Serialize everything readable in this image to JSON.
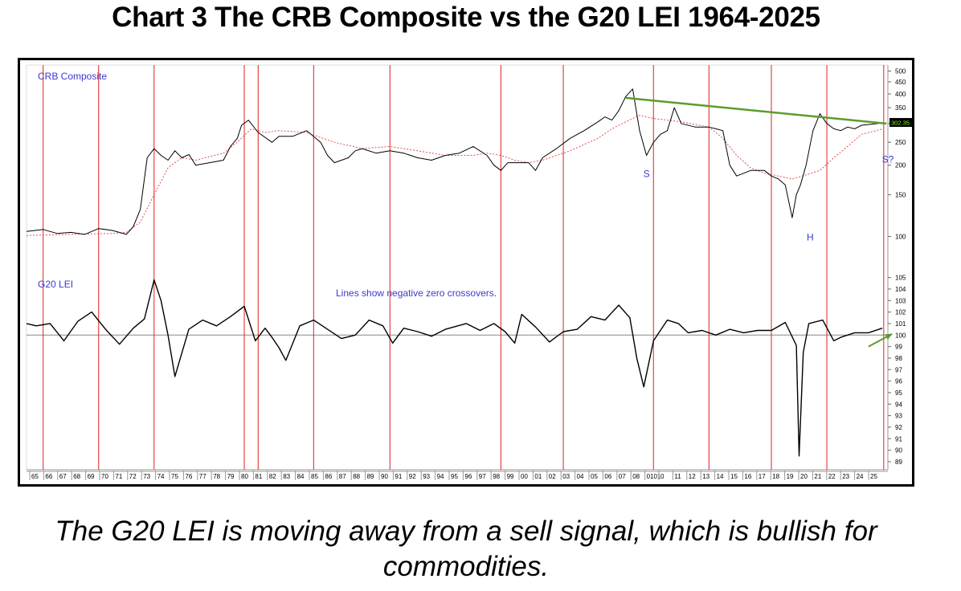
{
  "title": "Chart 3 The CRB Composite vs the G20 LEI 1964-2025",
  "caption_line1": "The G20 LEI is moving away from a sell signal, which is bullish for",
  "caption_line2": "commodities.",
  "chart_data": {
    "type": "line",
    "colors": {
      "price": "#000000",
      "moving_average": "#e05050",
      "signal_lines": "#e02020",
      "trendline": "#5a9e2a",
      "annotation": "#3a3ad0",
      "zero_line": "#888888"
    },
    "x_tick_labels": [
      "65",
      "66",
      "67",
      "68",
      "69",
      "70",
      "71",
      "72",
      "73",
      "74",
      "75",
      "76",
      "77",
      "78",
      "79",
      "80",
      "81",
      "82",
      "83",
      "84",
      "85",
      "86",
      "87",
      "88",
      "89",
      "90",
      "91",
      "92",
      "93",
      "94",
      "95",
      "96",
      "97",
      "98",
      "99",
      "00",
      "01",
      "02",
      "03",
      "04",
      "05",
      "06",
      "07",
      "08",
      "0101",
      "0",
      "11",
      "12",
      "13",
      "14",
      "15",
      "16",
      "17",
      "18",
      "19",
      "20",
      "21",
      "22",
      "23",
      "24",
      "25"
    ],
    "signal_years": [
      1966.0,
      1970.0,
      1974.0,
      1980.5,
      1981.5,
      1985.5,
      1991.0,
      1999.0,
      2003.5,
      2010.0,
      2014.0,
      2018.5,
      2022.5,
      2026.6
    ],
    "top_panel": {
      "label": "CRB Composite",
      "y_scale": "log",
      "ylim": [
        80,
        530
      ],
      "y_ticks": [
        500,
        450,
        400,
        350,
        300,
        250,
        200,
        150,
        100
      ],
      "last_value_label": "302.35",
      "annotations": [
        {
          "text": "S",
          "x": 2009.5,
          "y": 178
        },
        {
          "text": "H",
          "x": 2021.3,
          "y": 96
        },
        {
          "text": "S?",
          "x": 2026.9,
          "y": 205
        }
      ],
      "trendline": {
        "x": [
          2008.0,
          2026.8
        ],
        "y": [
          385,
          300
        ]
      },
      "series": [
        {
          "x": [
            1964.8,
            1966,
            1967,
            1968,
            1969,
            1970,
            1971,
            1972,
            1972.5,
            1973,
            1973.5,
            1974,
            1974.5,
            1975,
            1975.5,
            1976,
            1976.5,
            1977,
            1978,
            1979,
            1979.5,
            1980,
            1980.3,
            1980.8,
            1981.5,
            1982.5,
            1983,
            1984,
            1985,
            1986,
            1986.5,
            1987,
            1988,
            1988.5,
            1989,
            1990,
            1991,
            1992,
            1993,
            1994,
            1995,
            1996,
            1997,
            1998,
            1998.5,
            1999,
            1999.5,
            2000,
            2001,
            2001.5,
            2002,
            2003,
            2004,
            2005,
            2006,
            2006.5,
            2007,
            2007.5,
            2008,
            2008.5,
            2009,
            2009.5,
            2010,
            2010.5,
            2011,
            2011.5,
            2012,
            2013,
            2014,
            2014.5,
            2015,
            2015.5,
            2016,
            2017,
            2018,
            2018.5,
            2019,
            2019.5,
            2020,
            2020.3,
            2020.6,
            2021,
            2021.5,
            2022,
            2022.5,
            2023,
            2023.5,
            2024,
            2024.5,
            2025,
            2026.6
          ],
          "y": [
            105,
            107,
            103,
            104,
            102,
            108,
            106,
            102,
            110,
            130,
            215,
            235,
            220,
            210,
            230,
            215,
            222,
            200,
            205,
            210,
            240,
            260,
            295,
            310,
            275,
            250,
            265,
            265,
            280,
            250,
            220,
            205,
            215,
            230,
            235,
            225,
            230,
            225,
            215,
            210,
            220,
            225,
            240,
            220,
            200,
            190,
            205,
            205,
            205,
            190,
            215,
            235,
            260,
            280,
            305,
            320,
            310,
            340,
            390,
            420,
            280,
            220,
            250,
            270,
            280,
            350,
            300,
            290,
            290,
            285,
            280,
            200,
            180,
            190,
            190,
            180,
            175,
            165,
            120,
            150,
            165,
            200,
            280,
            330,
            300,
            285,
            280,
            290,
            285,
            295,
            302
          ]
        },
        {
          "x": [
            1964.8,
            1968,
            1971,
            1972,
            1973,
            1974,
            1975,
            1976,
            1977,
            1979,
            1980,
            1981,
            1982,
            1983,
            1985,
            1987,
            1989,
            1991,
            1993,
            1995,
            1997,
            1998,
            1999,
            2000,
            2001,
            2002,
            2004,
            2006,
            2007,
            2008,
            2009,
            2010,
            2011,
            2012,
            2014,
            2015,
            2016,
            2017,
            2018,
            2019,
            2020,
            2021,
            2022,
            2023,
            2024,
            2025,
            2026.6
          ],
          "y": [
            101,
            102,
            103,
            104,
            115,
            150,
            195,
            215,
            210,
            225,
            250,
            285,
            275,
            280,
            275,
            250,
            235,
            240,
            230,
            220,
            220,
            225,
            220,
            210,
            205,
            210,
            230,
            260,
            285,
            305,
            325,
            315,
            310,
            305,
            290,
            260,
            220,
            195,
            185,
            180,
            175,
            182,
            190,
            215,
            240,
            270,
            285
          ]
        }
      ]
    },
    "bottom_panel": {
      "label": "G20 LEI",
      "annotation": "Lines show negative zero crossovers.",
      "ylim": [
        88.3,
        105.6
      ],
      "y_ticks": [
        105,
        104,
        103,
        102,
        101,
        100,
        99,
        98,
        97,
        96,
        95,
        94,
        93,
        92,
        91,
        90,
        89
      ],
      "zero_line": 100,
      "arrow": {
        "x": [
          2025.5,
          2027.2
        ],
        "y": [
          99.0,
          100.1
        ]
      },
      "series": [
        {
          "x": [
            1964.8,
            1965.5,
            1966.5,
            1967.5,
            1968.5,
            1969.5,
            1970.5,
            1971.5,
            1972.5,
            1973.3,
            1974,
            1974.5,
            1975,
            1975.5,
            1976.5,
            1977.5,
            1978.5,
            1979.5,
            1980.5,
            1981.3,
            1982,
            1982.5,
            1983,
            1983.5,
            1984.5,
            1985.5,
            1986.5,
            1987.5,
            1988.5,
            1989.5,
            1990.5,
            1991.2,
            1992,
            1993,
            1994,
            1995,
            1996.5,
            1997.5,
            1998.5,
            1999.3,
            2000,
            2000.5,
            2001.5,
            2002.5,
            2003.5,
            2004.5,
            2005.5,
            2006.5,
            2007.5,
            2008.3,
            2008.8,
            2009.3,
            2010,
            2011,
            2011.8,
            2012.5,
            2013.5,
            2014.5,
            2015.5,
            2016.5,
            2017.5,
            2018.5,
            2019.5,
            2020.3,
            2020.5,
            2020.8,
            2021.2,
            2022.2,
            2023,
            2023.5,
            2024.5,
            2025.5,
            2026.5
          ],
          "y": [
            101,
            100.8,
            101,
            99.5,
            101.2,
            102,
            100.5,
            99.2,
            100.6,
            101.4,
            104.8,
            103,
            100,
            96.4,
            100.5,
            101.3,
            100.8,
            101.6,
            102.5,
            99.5,
            100.6,
            99.8,
            98.9,
            97.8,
            100.8,
            101.3,
            100.5,
            99.7,
            100,
            101.3,
            100.8,
            99.3,
            100.6,
            100.3,
            99.9,
            100.5,
            101,
            100.4,
            101,
            100.3,
            99.3,
            101.8,
            100.7,
            99.4,
            100.3,
            100.5,
            101.6,
            101.3,
            102.6,
            101.5,
            98,
            95.5,
            99.5,
            101.3,
            101,
            100.2,
            100.4,
            100,
            100.5,
            100.2,
            100.4,
            100.4,
            101.1,
            99.1,
            89.5,
            98.5,
            101,
            101.3,
            99.5,
            99.8,
            100.2,
            100.2,
            100.6
          ]
        }
      ]
    }
  }
}
